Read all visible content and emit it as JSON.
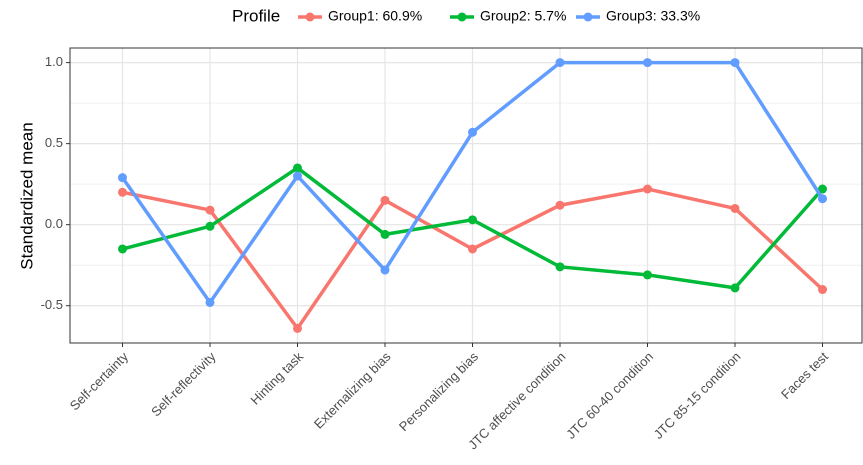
{
  "chart_data": {
    "type": "line",
    "legend_title": "Profile",
    "legend_position": "top",
    "ylabel": "Standardized mean",
    "categories": [
      "Self-certainty",
      "Self-reflectivity",
      "Hinting task",
      "Externalizing bias",
      "Personalizing bias",
      "JTC affective condition",
      "JTC 60-40 condition",
      "JTC 85-15 condition",
      "Faces test"
    ],
    "series": [
      {
        "name": "Group1: 60.9%",
        "color": "#F8766D",
        "values": [
          0.2,
          0.09,
          -0.64,
          0.15,
          -0.15,
          0.12,
          0.22,
          0.1,
          -0.4
        ]
      },
      {
        "name": "Group2: 5.7%",
        "color": "#00BA38",
        "values": [
          -0.15,
          -0.01,
          0.35,
          -0.06,
          0.03,
          -0.26,
          -0.31,
          -0.39,
          0.22
        ]
      },
      {
        "name": "Group3: 33.3%",
        "color": "#619CFF",
        "values": [
          0.29,
          -0.48,
          0.3,
          -0.28,
          0.57,
          1.0,
          1.0,
          1.0,
          0.16
        ]
      }
    ],
    "ylim": [
      -0.73,
      1.09
    ],
    "yticks": [
      {
        "value": -0.5,
        "label": "-0.5"
      },
      {
        "value": 0,
        "label": "0.0"
      },
      {
        "value": 0.5,
        "label": "0.5"
      },
      {
        "value": 1,
        "label": "1.0"
      }
    ],
    "y_minor_ticks": [
      -0.25,
      0.25,
      0.75
    ],
    "grid": true
  }
}
